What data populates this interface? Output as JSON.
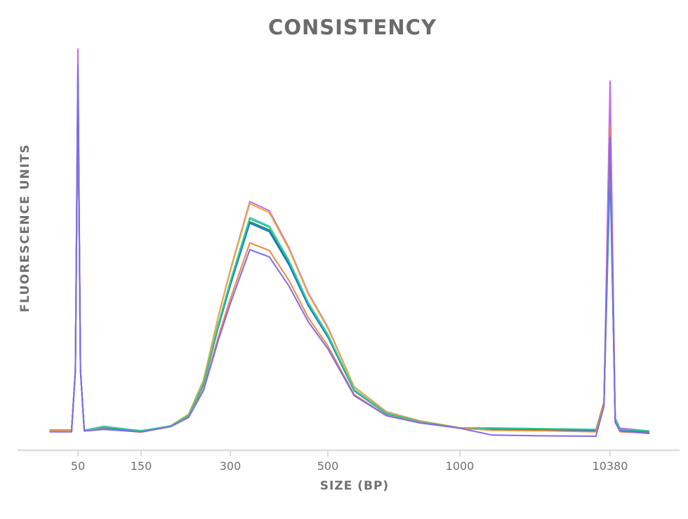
{
  "chart_data": {
    "type": "line",
    "title": "CONSISTENCY",
    "xlabel": "SIZE (BP)",
    "ylabel": "FLUORESCENCE UNITS",
    "x_ticks": [
      50,
      150,
      300,
      500,
      1000,
      10380
    ],
    "x_tick_labels": [
      "50",
      "150",
      "300",
      "500",
      "1000",
      "10380"
    ],
    "ylim": [
      0,
      100
    ],
    "grid": false,
    "legend": "none",
    "x": [
      5,
      40,
      46,
      50,
      54,
      60,
      91,
      150,
      200,
      230,
      255,
      280,
      300,
      340,
      380,
      420,
      460,
      500,
      600,
      722,
      850,
      1000,
      3000,
      6000,
      9500,
      10000,
      10380,
      10700,
      11000,
      12835
    ],
    "series": [
      {
        "color": "#c966f0",
        "values": [
          5,
          5,
          20,
          100,
          20,
          5,
          5.5,
          4.8,
          6.1,
          9,
          17.5,
          33.5,
          44.9,
          62,
          59.7,
          50.6,
          39.2,
          30.7,
          15.8,
          9.6,
          7.3,
          5.6,
          5.4,
          5.3,
          5.1,
          12,
          92,
          8,
          5.5,
          4.8
        ]
      },
      {
        "color": "#e8b030",
        "values": [
          5,
          5,
          20,
          93,
          20,
          5,
          5.5,
          4.8,
          6.1,
          9,
          17.4,
          33.3,
          44.6,
          61.5,
          59.2,
          50.2,
          38.9,
          30.4,
          15.7,
          9.5,
          7.3,
          5.6,
          5.6,
          5.4,
          5,
          12,
          72,
          8,
          5,
          4.5
        ]
      },
      {
        "color": "#4cc4c4",
        "values": [
          5,
          5,
          20,
          92,
          20,
          5,
          6,
          4.8,
          6.1,
          8.7,
          16.7,
          31.5,
          42.1,
          58,
          55.9,
          47.4,
          36.8,
          28.9,
          15.1,
          9.2,
          7.1,
          5.5,
          5.3,
          5.2,
          5,
          12,
          77,
          8,
          5,
          4.6
        ]
      },
      {
        "color": "#1e8a5a",
        "values": [
          5,
          5,
          20,
          91,
          20,
          5,
          5.3,
          4.6,
          6,
          8.6,
          16.4,
          31,
          41.4,
          57,
          54.9,
          46.6,
          36.2,
          28.4,
          14.9,
          9.2,
          7.1,
          5.5,
          5.2,
          5.1,
          4.9,
          12,
          75,
          7,
          4.8,
          4.2
        ]
      },
      {
        "color": "#1a73d0",
        "values": [
          5,
          5,
          20,
          92,
          20,
          5,
          5.4,
          4.8,
          6,
          8.6,
          16.4,
          30.8,
          41.1,
          56.6,
          54.5,
          46.3,
          36,
          28.2,
          14.8,
          9.1,
          7.1,
          5.5,
          5.3,
          5.2,
          5,
          12,
          70,
          8,
          5,
          4.5
        ]
      },
      {
        "color": "#2ecc90",
        "values": [
          5,
          5,
          20,
          94,
          20,
          5,
          5.8,
          4.9,
          6,
          8.7,
          16.6,
          31.4,
          41.9,
          57.7,
          55.6,
          47.2,
          36.6,
          28.7,
          15,
          9.2,
          7.1,
          5.5,
          5.5,
          5.4,
          5.2,
          12,
          74,
          8,
          5.2,
          4.8
        ]
      },
      {
        "color": "#f0883a",
        "values": [
          5,
          5,
          20,
          90,
          20,
          5,
          5.3,
          4.5,
          5.9,
          8.3,
          15.3,
          28.4,
          37.7,
          51.7,
          49.8,
          42.4,
          33,
          26,
          13.9,
          8.7,
          6.9,
          5.5,
          5,
          4.9,
          4.6,
          12,
          81,
          7,
          4.6,
          4.3
        ]
      },
      {
        "color": "#7b6cf0",
        "values": [
          4.6,
          4.6,
          20,
          96,
          20,
          4.8,
          5.2,
          4.6,
          5.9,
          8.2,
          14.9,
          27.5,
          36.5,
          50,
          48.2,
          41,
          32,
          25.3,
          13.6,
          8.6,
          6.8,
          5.5,
          3.8,
          3.6,
          3.5,
          11,
          78,
          7,
          4.8,
          4.2
        ]
      }
    ]
  }
}
